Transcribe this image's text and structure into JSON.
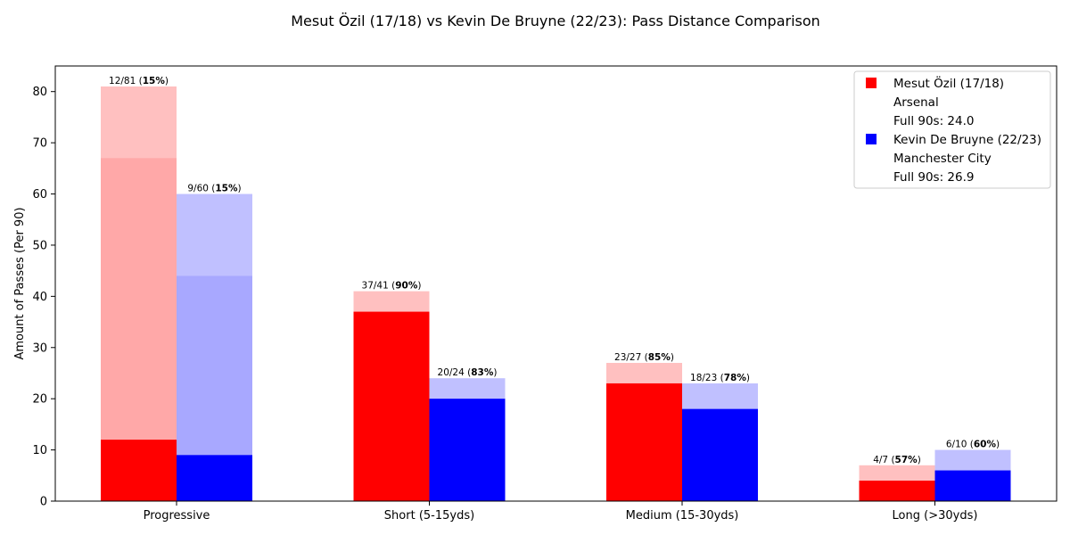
{
  "chart_data": {
    "type": "bar",
    "title": "Mesut Özil (17/18) vs Kevin De Bruyne (22/23): Pass Distance Comparison",
    "xlabel": "",
    "ylabel": "Amount of Passes (Per 90)",
    "ylim": [
      0,
      85
    ],
    "yticks": [
      0,
      10,
      20,
      30,
      40,
      50,
      60,
      70,
      80
    ],
    "grid": false,
    "legend_position": "top-right",
    "categories": [
      "Progressive",
      "Short (5-15yds)",
      "Medium (15-30yds)",
      "Long (>30yds)"
    ],
    "series": [
      {
        "name": "Mesut Özil (17/18)",
        "team": "Arsenal",
        "full90s": "Full 90s: 24.0",
        "color": "#ff0000",
        "light_color": "#ffc0c0",
        "mid_color": "#ffa8a8",
        "completed": [
          12,
          37,
          23,
          4
        ],
        "attempted": [
          81,
          41,
          27,
          7
        ],
        "progressive_mid": 67,
        "labels": [
          {
            "count": "12/81 (",
            "pct": "15%",
            "close": ")"
          },
          {
            "count": "37/41 (",
            "pct": "90%",
            "close": ")"
          },
          {
            "count": "23/27 (",
            "pct": "85%",
            "close": ")"
          },
          {
            "count": "4/7 (",
            "pct": "57%",
            "close": ")"
          }
        ]
      },
      {
        "name": "Kevin De Bruyne (22/23)",
        "team": "Manchester City",
        "full90s": "Full 90s: 26.9",
        "color": "#0000ff",
        "light_color": "#c0c0ff",
        "mid_color": "#a8a8ff",
        "completed": [
          9,
          20,
          18,
          6
        ],
        "attempted": [
          60,
          24,
          23,
          10
        ],
        "progressive_mid": 44,
        "labels": [
          {
            "count": "9/60 (",
            "pct": "15%",
            "close": ")"
          },
          {
            "count": "20/24 (",
            "pct": "83%",
            "close": ")"
          },
          {
            "count": "18/23 (",
            "pct": "78%",
            "close": ")"
          },
          {
            "count": "6/10 (",
            "pct": "60%",
            "close": ")"
          }
        ]
      }
    ]
  }
}
